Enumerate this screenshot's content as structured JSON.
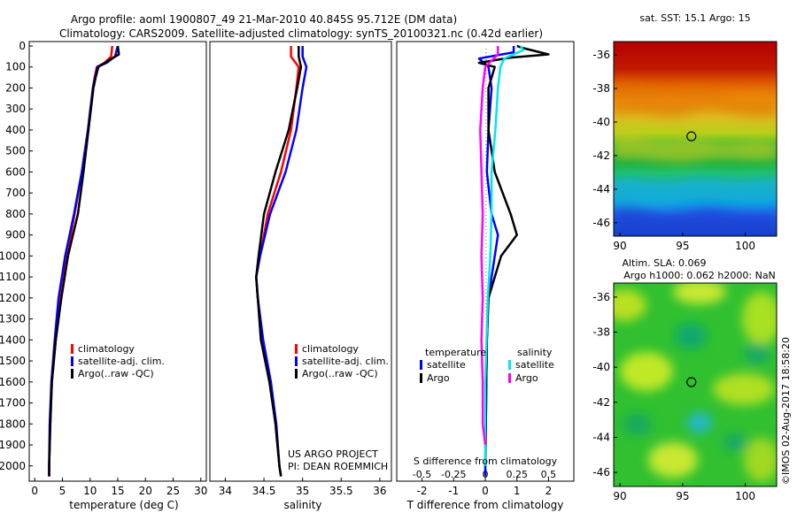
{
  "header": {
    "title_line1": "Argo profile: aoml 1900807_49 21-Mar-2010 40.845S 95.712E (DM data)",
    "title_line2": "Climatology: CARS2009. Satellite-adjusted climatology: synTS_20100321.nc (0.42d earlier)"
  },
  "credit": {
    "project": "US ARGO PROJECT",
    "pi": "PI: DEAN ROEMMICH",
    "stamp": "©IMOS 02-Aug-2017 18:58:20"
  },
  "colors": {
    "climatology": "#ff0000",
    "satellite": "#0000ff",
    "argo": "#000000",
    "sat_salinity": "#00e5ee",
    "argo_salinity": "#ff00ff"
  },
  "chart_data": [
    {
      "type": "line",
      "xlabel": "temperature (deg C)",
      "xlim": [
        -1,
        31
      ],
      "xticks": [
        0,
        5,
        10,
        15,
        20,
        25,
        30
      ],
      "ylim": [
        2060,
        0
      ],
      "yticks": [
        0,
        100,
        200,
        300,
        400,
        500,
        600,
        700,
        800,
        900,
        1000,
        1100,
        1200,
        1300,
        1400,
        1500,
        1600,
        1700,
        1800,
        1900,
        2000
      ],
      "legend": [
        "climatology",
        "satellite-adj. clim.",
        "Argo(..raw -QC)"
      ],
      "series": [
        {
          "name": "climatology",
          "color": "#ff0000",
          "points": [
            [
              14.0,
              0
            ],
            [
              13.8,
              50
            ],
            [
              12.6,
              80
            ],
            [
              11.2,
              100
            ],
            [
              10.8,
              150
            ],
            [
              10.5,
              200
            ],
            [
              9.6,
              400
            ],
            [
              8.5,
              600
            ],
            [
              7.2,
              800
            ],
            [
              5.8,
              1000
            ],
            [
              4.7,
              1200
            ],
            [
              3.8,
              1400
            ],
            [
              3.1,
              1600
            ],
            [
              2.8,
              1800
            ],
            [
              2.6,
              2000
            ],
            [
              2.6,
              2050
            ]
          ]
        },
        {
          "name": "satellite-adj. clim.",
          "color": "#0000ff",
          "points": [
            [
              15.0,
              0
            ],
            [
              14.5,
              50
            ],
            [
              13.0,
              80
            ],
            [
              11.3,
              100
            ],
            [
              10.9,
              150
            ],
            [
              10.5,
              200
            ],
            [
              9.6,
              400
            ],
            [
              8.5,
              600
            ],
            [
              7.1,
              800
            ],
            [
              5.5,
              1000
            ],
            [
              4.3,
              1200
            ],
            [
              3.6,
              1400
            ],
            [
              3.0,
              1600
            ],
            [
              2.7,
              1800
            ],
            [
              2.6,
              2000
            ],
            [
              2.6,
              2050
            ]
          ]
        },
        {
          "name": "Argo(..raw -QC)",
          "color": "#000000",
          "points": [
            [
              15.0,
              0
            ],
            [
              15.2,
              40
            ],
            [
              13.3,
              70
            ],
            [
              11.5,
              100
            ],
            [
              11.0,
              150
            ],
            [
              10.6,
              200
            ],
            [
              9.7,
              400
            ],
            [
              8.8,
              600
            ],
            [
              7.8,
              800
            ],
            [
              6.0,
              1000
            ],
            [
              4.8,
              1200
            ],
            [
              3.8,
              1400
            ],
            [
              3.1,
              1600
            ],
            [
              2.8,
              1800
            ],
            [
              2.6,
              2000
            ],
            [
              2.6,
              2050
            ]
          ]
        }
      ]
    },
    {
      "type": "line",
      "xlabel": "salinity",
      "xlim": [
        33.8,
        36.15
      ],
      "xticks": [
        34,
        34.5,
        35,
        35.5,
        36
      ],
      "xticklabels": [
        "34",
        "34.5",
        "35",
        "35.5",
        "36"
      ],
      "ylim": [
        2060,
        0
      ],
      "legend": [
        "climatology",
        "satellite-adj. clim.",
        "Argo(..raw -QC)"
      ],
      "series": [
        {
          "name": "climatology",
          "color": "#ff0000",
          "points": [
            [
              34.85,
              0
            ],
            [
              34.85,
              50
            ],
            [
              34.95,
              100
            ],
            [
              34.92,
              200
            ],
            [
              34.85,
              400
            ],
            [
              34.72,
              600
            ],
            [
              34.55,
              800
            ],
            [
              34.45,
              1000
            ],
            [
              34.4,
              1100
            ],
            [
              34.42,
              1200
            ],
            [
              34.48,
              1400
            ],
            [
              34.58,
              1600
            ],
            [
              34.65,
              1800
            ],
            [
              34.7,
              2000
            ],
            [
              34.72,
              2050
            ]
          ]
        },
        {
          "name": "satellite-adj. clim.",
          "color": "#0000ff",
          "points": [
            [
              35.0,
              0
            ],
            [
              35.0,
              50
            ],
            [
              35.05,
              100
            ],
            [
              35.0,
              200
            ],
            [
              34.92,
              400
            ],
            [
              34.78,
              600
            ],
            [
              34.58,
              800
            ],
            [
              34.45,
              1000
            ],
            [
              34.4,
              1100
            ],
            [
              34.42,
              1200
            ],
            [
              34.49,
              1400
            ],
            [
              34.59,
              1600
            ],
            [
              34.66,
              1800
            ],
            [
              34.7,
              2000
            ],
            [
              34.72,
              2050
            ]
          ]
        },
        {
          "name": "Argo(..raw -QC)",
          "color": "#000000",
          "points": [
            [
              34.95,
              0
            ],
            [
              34.95,
              50
            ],
            [
              34.98,
              100
            ],
            [
              34.93,
              200
            ],
            [
              34.82,
              400
            ],
            [
              34.65,
              600
            ],
            [
              34.5,
              800
            ],
            [
              34.43,
              1000
            ],
            [
              34.4,
              1100
            ],
            [
              34.42,
              1200
            ],
            [
              34.46,
              1400
            ],
            [
              34.57,
              1600
            ],
            [
              34.65,
              1800
            ],
            [
              34.7,
              2000
            ],
            [
              34.72,
              2050
            ]
          ]
        }
      ]
    },
    {
      "type": "line",
      "xlabel": "T difference from climatology",
      "xlabel_top": "S difference from climatology",
      "xlim": [
        -2.8,
        2.8
      ],
      "xticks": [
        -2,
        -1,
        0,
        1,
        2
      ],
      "xticks_top": [
        -0.5,
        -0.25,
        0,
        0.25,
        0.5
      ],
      "xticklabels_top": [
        "-0.5",
        "-0.25",
        "0",
        "0.25",
        "0.5"
      ],
      "ylim": [
        2060,
        0
      ],
      "legend_groups": [
        "temperature",
        "salinity"
      ],
      "legend": [
        "satellite",
        "Argo",
        "satellite",
        "Argo"
      ],
      "series": [
        {
          "name": "satellite",
          "group": "temperature",
          "color": "#0000ff",
          "points": [
            [
              0.9,
              0
            ],
            [
              0.9,
              30
            ],
            [
              -0.2,
              60
            ],
            [
              0.1,
              100
            ],
            [
              0.2,
              200
            ],
            [
              0.1,
              400
            ],
            [
              0.05,
              600
            ],
            [
              0.2,
              800
            ],
            [
              0.4,
              900
            ],
            [
              0.3,
              1000
            ],
            [
              0.1,
              1200
            ],
            [
              0.05,
              1400
            ],
            [
              0.03,
              1600
            ],
            [
              0.02,
              1800
            ],
            [
              0.0,
              2000
            ],
            [
              0.0,
              2050
            ]
          ]
        },
        {
          "name": "Argo",
          "group": "temperature",
          "color": "#000000",
          "points": [
            [
              1.0,
              0
            ],
            [
              1.2,
              10
            ],
            [
              2.0,
              40
            ],
            [
              0.8,
              55
            ],
            [
              -0.2,
              80
            ],
            [
              0.3,
              100
            ],
            [
              0.1,
              200
            ],
            [
              0.1,
              400
            ],
            [
              0.3,
              600
            ],
            [
              0.8,
              800
            ],
            [
              1.0,
              900
            ],
            [
              0.5,
              1000
            ],
            [
              0.1,
              1200
            ],
            [
              0.05,
              1400
            ],
            [
              0.03,
              1600
            ],
            [
              0.02,
              1800
            ],
            [
              0.0,
              2000
            ]
          ]
        },
        {
          "name": "satellite",
          "group": "salinity",
          "color": "#00e5ee",
          "points": [
            [
              0.28,
              0
            ],
            [
              0.3,
              20
            ],
            [
              0.15,
              60
            ],
            [
              0.12,
              100
            ],
            [
              0.1,
              200
            ],
            [
              0.08,
              400
            ],
            [
              0.05,
              600
            ],
            [
              0.05,
              800
            ],
            [
              0.04,
              1000
            ],
            [
              0.02,
              1200
            ],
            [
              0.01,
              1400
            ],
            [
              0.0,
              1600
            ],
            [
              0.0,
              1800
            ],
            [
              0.0,
              2000
            ]
          ]
        },
        {
          "name": "Argo",
          "group": "salinity",
          "color": "#ff00ff",
          "points": [
            [
              0.1,
              0
            ],
            [
              0.1,
              40
            ],
            [
              0.0,
              100
            ],
            [
              -0.02,
              200
            ],
            [
              -0.04,
              400
            ],
            [
              -0.03,
              600
            ],
            [
              -0.02,
              800
            ],
            [
              -0.03,
              1000
            ],
            [
              -0.02,
              1200
            ],
            [
              -0.03,
              1400
            ],
            [
              -0.02,
              1600
            ],
            [
              -0.02,
              1800
            ],
            [
              0.0,
              1900
            ]
          ]
        }
      ]
    },
    {
      "type": "heatmap",
      "title": "sat. SST: 15.1 Argo: 15",
      "xlim": [
        89.5,
        102.5
      ],
      "ylim": [
        -46.8,
        -35.2
      ],
      "xticks": [
        90,
        95,
        100
      ],
      "yticks": [
        -36,
        -38,
        -40,
        -42,
        -44,
        -46
      ],
      "marker": [
        95.7,
        -40.85
      ]
    },
    {
      "type": "heatmap",
      "title_line1": "Altim. SLA: 0.069",
      "title_line2": "Argo h1000: 0.062 h2000: NaN",
      "xlim": [
        89.5,
        102.5
      ],
      "ylim": [
        -46.8,
        -35.2
      ],
      "xticks": [
        90,
        95,
        100
      ],
      "yticks": [
        -36,
        -38,
        -40,
        -42,
        -44,
        -46
      ],
      "marker": [
        95.7,
        -40.85
      ]
    }
  ]
}
